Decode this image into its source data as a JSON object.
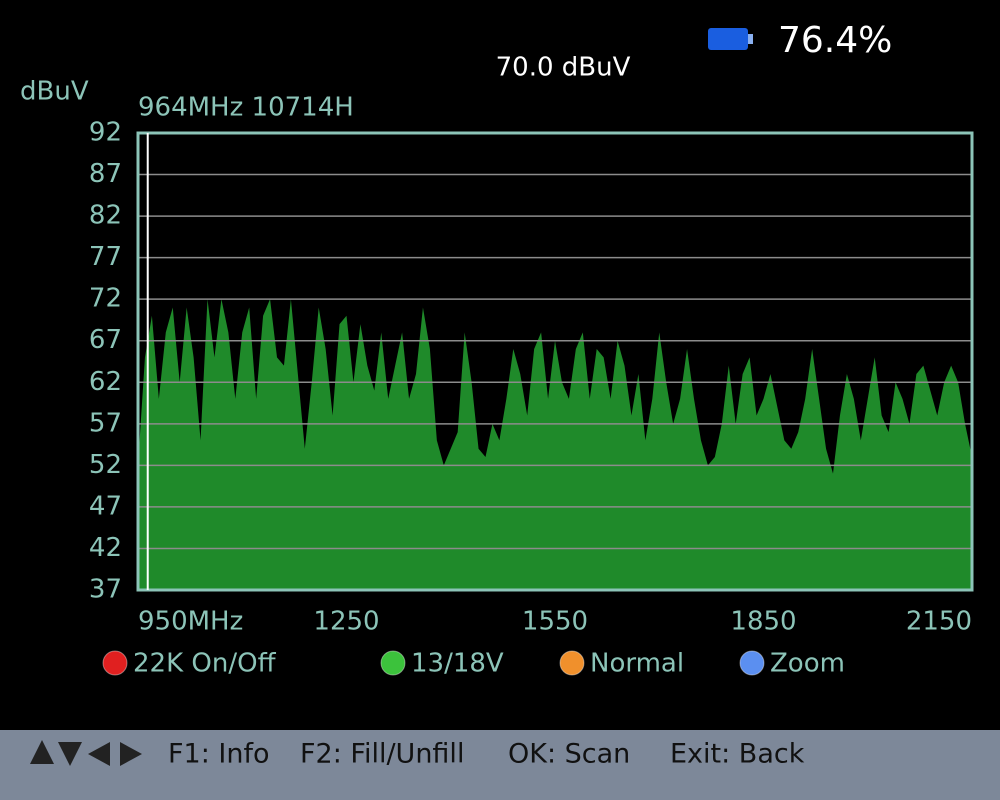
{
  "chart_data": {
    "type": "area",
    "title": "964MHz 10714H",
    "ylabel": "dBuV",
    "annotation": "70.0 dBuV",
    "x": [
      950,
      960,
      970,
      980,
      990,
      1000,
      1010,
      1020,
      1030,
      1040,
      1050,
      1060,
      1070,
      1080,
      1090,
      1100,
      1110,
      1120,
      1130,
      1140,
      1150,
      1160,
      1170,
      1180,
      1190,
      1200,
      1210,
      1220,
      1230,
      1240,
      1250,
      1260,
      1270,
      1280,
      1290,
      1300,
      1310,
      1320,
      1330,
      1340,
      1350,
      1360,
      1370,
      1380,
      1390,
      1400,
      1410,
      1420,
      1430,
      1440,
      1450,
      1460,
      1470,
      1480,
      1490,
      1500,
      1510,
      1520,
      1530,
      1540,
      1550,
      1560,
      1570,
      1580,
      1590,
      1600,
      1610,
      1620,
      1630,
      1640,
      1650,
      1660,
      1670,
      1680,
      1690,
      1700,
      1710,
      1720,
      1730,
      1740,
      1750,
      1760,
      1770,
      1780,
      1790,
      1800,
      1810,
      1820,
      1830,
      1840,
      1850,
      1860,
      1870,
      1880,
      1890,
      1900,
      1910,
      1920,
      1930,
      1940,
      1950,
      1960,
      1970,
      1980,
      1990,
      2000,
      2010,
      2020,
      2030,
      2040,
      2050,
      2060,
      2070,
      2080,
      2090,
      2100,
      2110,
      2120,
      2130,
      2140,
      2150
    ],
    "values": [
      52,
      65,
      70,
      60,
      68,
      71,
      62,
      71,
      65,
      55,
      72,
      65,
      72,
      68,
      60,
      68,
      71,
      60,
      70,
      72,
      65,
      64,
      72,
      63,
      54,
      62,
      71,
      66,
      58,
      69,
      70,
      62,
      69,
      64,
      61,
      68,
      60,
      64,
      68,
      60,
      63,
      71,
      66,
      55,
      52,
      54,
      56,
      68,
      62,
      54,
      53,
      57,
      55,
      60,
      66,
      63,
      58,
      66,
      68,
      60,
      67,
      62,
      60,
      66,
      68,
      60,
      66,
      65,
      60,
      67,
      64,
      58,
      63,
      55,
      60,
      68,
      62,
      57,
      60,
      66,
      60,
      55,
      52,
      53,
      57,
      64,
      57,
      63,
      65,
      58,
      60,
      63,
      59,
      55,
      54,
      56,
      60,
      66,
      60,
      54,
      51,
      58,
      63,
      60,
      55,
      60,
      65,
      58,
      56,
      62,
      60,
      57,
      63,
      64,
      61,
      58,
      62,
      64,
      62,
      57,
      53
    ],
    "color": "#1f8a2a",
    "cursor": 964,
    "xlim": [
      950,
      2150
    ],
    "xticks": [
      {
        "value": 950,
        "label": "950MHz"
      },
      1250,
      1550,
      1850,
      2150
    ],
    "ylim": [
      37,
      92
    ],
    "yticks": [
      37,
      42,
      47,
      52,
      57,
      62,
      67,
      72,
      77,
      82,
      87,
      92
    ],
    "grid": true
  },
  "status": {
    "battery": "76.4%"
  },
  "buttons": [
    {
      "label": "22K On/Off",
      "color": "#e02020"
    },
    {
      "label": "13/18V",
      "color": "#3cc23c"
    },
    {
      "label": "Normal",
      "color": "#f0902c"
    },
    {
      "label": "Zoom",
      "color": "#5b8ff0"
    }
  ],
  "footer": [
    "F1: Info",
    "F2: Fill/Unfill",
    "OK: Scan",
    "Exit: Back"
  ]
}
